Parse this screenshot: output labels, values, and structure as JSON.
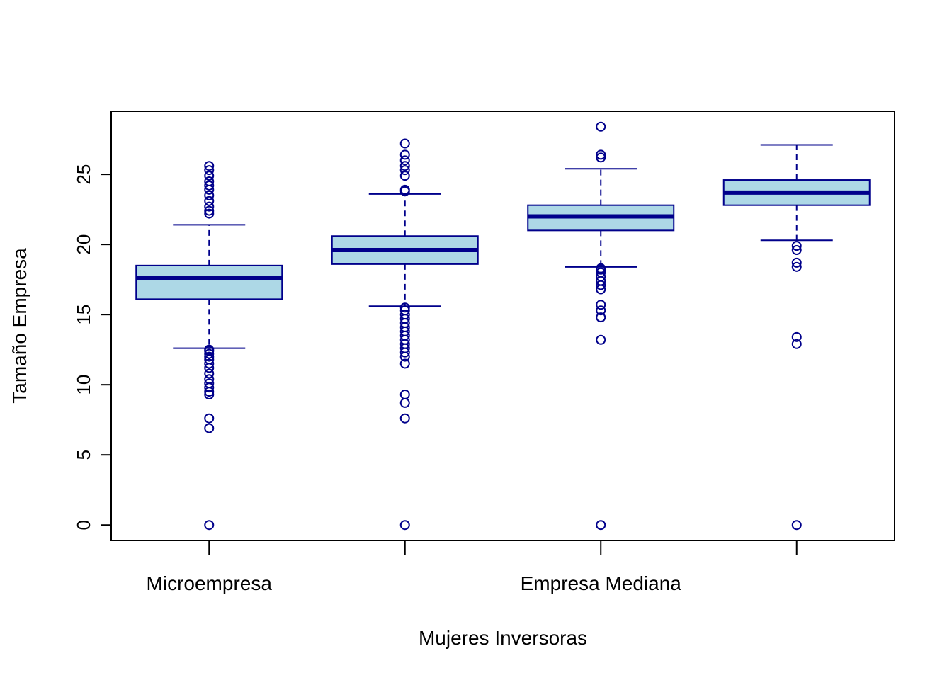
{
  "chart_data": {
    "type": "boxplot",
    "title": "",
    "xlabel": "Mujeres Inversoras",
    "ylabel": "Tamaño Empresa",
    "ylim": [
      -1.1,
      29.5
    ],
    "yticks": [
      0,
      5,
      10,
      15,
      20,
      25
    ],
    "grid": false,
    "categories": [
      "Microempresa",
      "",
      "Empresa Mediana",
      ""
    ],
    "colors": {
      "box_fill": "#add8e6",
      "stroke": "#00008b"
    },
    "boxes": [
      {
        "whisker_low": 12.6,
        "q1": 16.1,
        "median": 17.6,
        "q3": 18.5,
        "whisker_high": 21.4,
        "outliers": [
          0,
          6.9,
          7.6,
          9.3,
          9.5,
          9.8,
          10.1,
          10.4,
          10.8,
          11.2,
          11.5,
          11.8,
          12.0,
          12.2,
          12.4,
          12.5,
          22.2,
          22.4,
          22.7,
          23.1,
          23.5,
          23.9,
          24.2,
          24.5,
          24.9,
          25.3,
          25.6
        ]
      },
      {
        "whisker_low": 15.6,
        "q1": 18.6,
        "median": 19.6,
        "q3": 20.6,
        "whisker_high": 23.6,
        "outliers": [
          0,
          7.6,
          8.7,
          9.3,
          11.5,
          12.0,
          12.3,
          12.6,
          12.9,
          13.2,
          13.5,
          13.8,
          14.1,
          14.4,
          14.7,
          15.0,
          15.3,
          15.5,
          23.8,
          23.9,
          24.9,
          25.3,
          25.6,
          26.0,
          26.4,
          27.2
        ]
      },
      {
        "whisker_low": 18.4,
        "q1": 21.0,
        "median": 22.0,
        "q3": 22.8,
        "whisker_high": 25.4,
        "outliers": [
          0,
          13.2,
          14.8,
          15.3,
          15.7,
          16.8,
          17.1,
          17.4,
          17.7,
          18.0,
          18.2,
          18.3,
          26.2,
          26.4,
          28.4
        ]
      },
      {
        "whisker_low": 20.3,
        "q1": 22.8,
        "median": 23.7,
        "q3": 24.6,
        "whisker_high": 27.1,
        "outliers": [
          0,
          12.9,
          13.4,
          18.4,
          18.7,
          19.6,
          19.9
        ]
      }
    ]
  }
}
